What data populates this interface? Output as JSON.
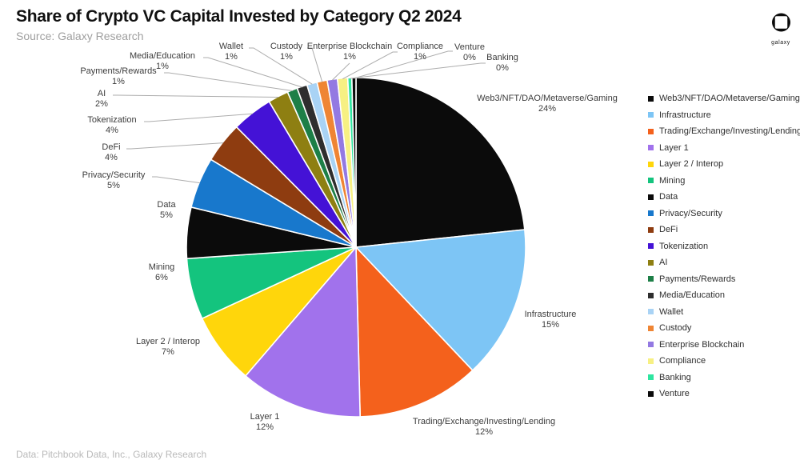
{
  "header": {
    "title": "Share of Crypto VC Capital Invested by Category Q2 2024",
    "source": "Source: Galaxy Research",
    "logo_text": "galaxy"
  },
  "footer": {
    "credit": "Data: Pitchbook Data, Inc., Galaxy Research"
  },
  "chart_data": {
    "type": "pie",
    "title": "Share of Crypto VC Capital Invested by Category Q2 2024",
    "source": "Source: Galaxy Research",
    "credit": "Data: Pitchbook Data, Inc., Galaxy Research",
    "legend_position": "right",
    "start_angle_deg": 0,
    "direction": "clockwise",
    "slices": [
      {
        "id": "web3-nft-dao-metaverse-gaming",
        "label": "Web3/NFT/DAO/Metaverse/Gaming",
        "pct": 24,
        "pct_label": "24%",
        "color": "#0b0b0b"
      },
      {
        "id": "infrastructure",
        "label": "Infrastructure",
        "pct": 15,
        "pct_label": "15%",
        "color": "#7dc5f5"
      },
      {
        "id": "trading-exchange-investing-lending",
        "label": "Trading/Exchange/Investing/Lending",
        "pct": 12,
        "pct_label": "12%",
        "color": "#f4611c"
      },
      {
        "id": "layer-1",
        "label": "Layer 1",
        "pct": 12,
        "pct_label": "12%",
        "color": "#a172ec"
      },
      {
        "id": "layer-2-interop",
        "label": "Layer 2 / Interop",
        "pct": 7,
        "pct_label": "7%",
        "color": "#ffd60b"
      },
      {
        "id": "mining",
        "label": "Mining",
        "pct": 6,
        "pct_label": "6%",
        "color": "#14c47e"
      },
      {
        "id": "data",
        "label": "Data",
        "pct": 5,
        "pct_label": "5%",
        "color": "#0b0b0b"
      },
      {
        "id": "privacy-security",
        "label": "Privacy/Security",
        "pct": 5,
        "pct_label": "5%",
        "color": "#1878cc"
      },
      {
        "id": "defi",
        "label": "DeFi",
        "pct": 4,
        "pct_label": "4%",
        "color": "#8e3c10"
      },
      {
        "id": "tokenization",
        "label": "Tokenization",
        "pct": 4,
        "pct_label": "4%",
        "color": "#4412d6"
      },
      {
        "id": "ai",
        "label": "AI",
        "pct": 2,
        "pct_label": "2%",
        "color": "#8e7f12"
      },
      {
        "id": "payments-rewards",
        "label": "Payments/Rewards",
        "pct": 1,
        "pct_label": "1%",
        "color": "#1d7f47"
      },
      {
        "id": "media-education",
        "label": "Media/Education",
        "pct": 1,
        "pct_label": "1%",
        "color": "#2e2e2e"
      },
      {
        "id": "wallet",
        "label": "Wallet",
        "pct": 1,
        "pct_label": "1%",
        "color": "#a9d3f5"
      },
      {
        "id": "custody",
        "label": "Custody",
        "pct": 1,
        "pct_label": "1%",
        "color": "#ef8534"
      },
      {
        "id": "enterprise-blockchain",
        "label": "Enterprise Blockchain",
        "pct": 1,
        "pct_label": "1%",
        "color": "#9379e2"
      },
      {
        "id": "compliance",
        "label": "Compliance",
        "pct": 1,
        "pct_label": "1%",
        "color": "#f7f083"
      },
      {
        "id": "banking",
        "label": "Banking",
        "pct": 0,
        "pct_label": "0%",
        "color": "#2fe5a0"
      },
      {
        "id": "venture",
        "label": "Venture",
        "pct": 0,
        "pct_label": "0%",
        "color": "#0b0b0b"
      }
    ]
  }
}
